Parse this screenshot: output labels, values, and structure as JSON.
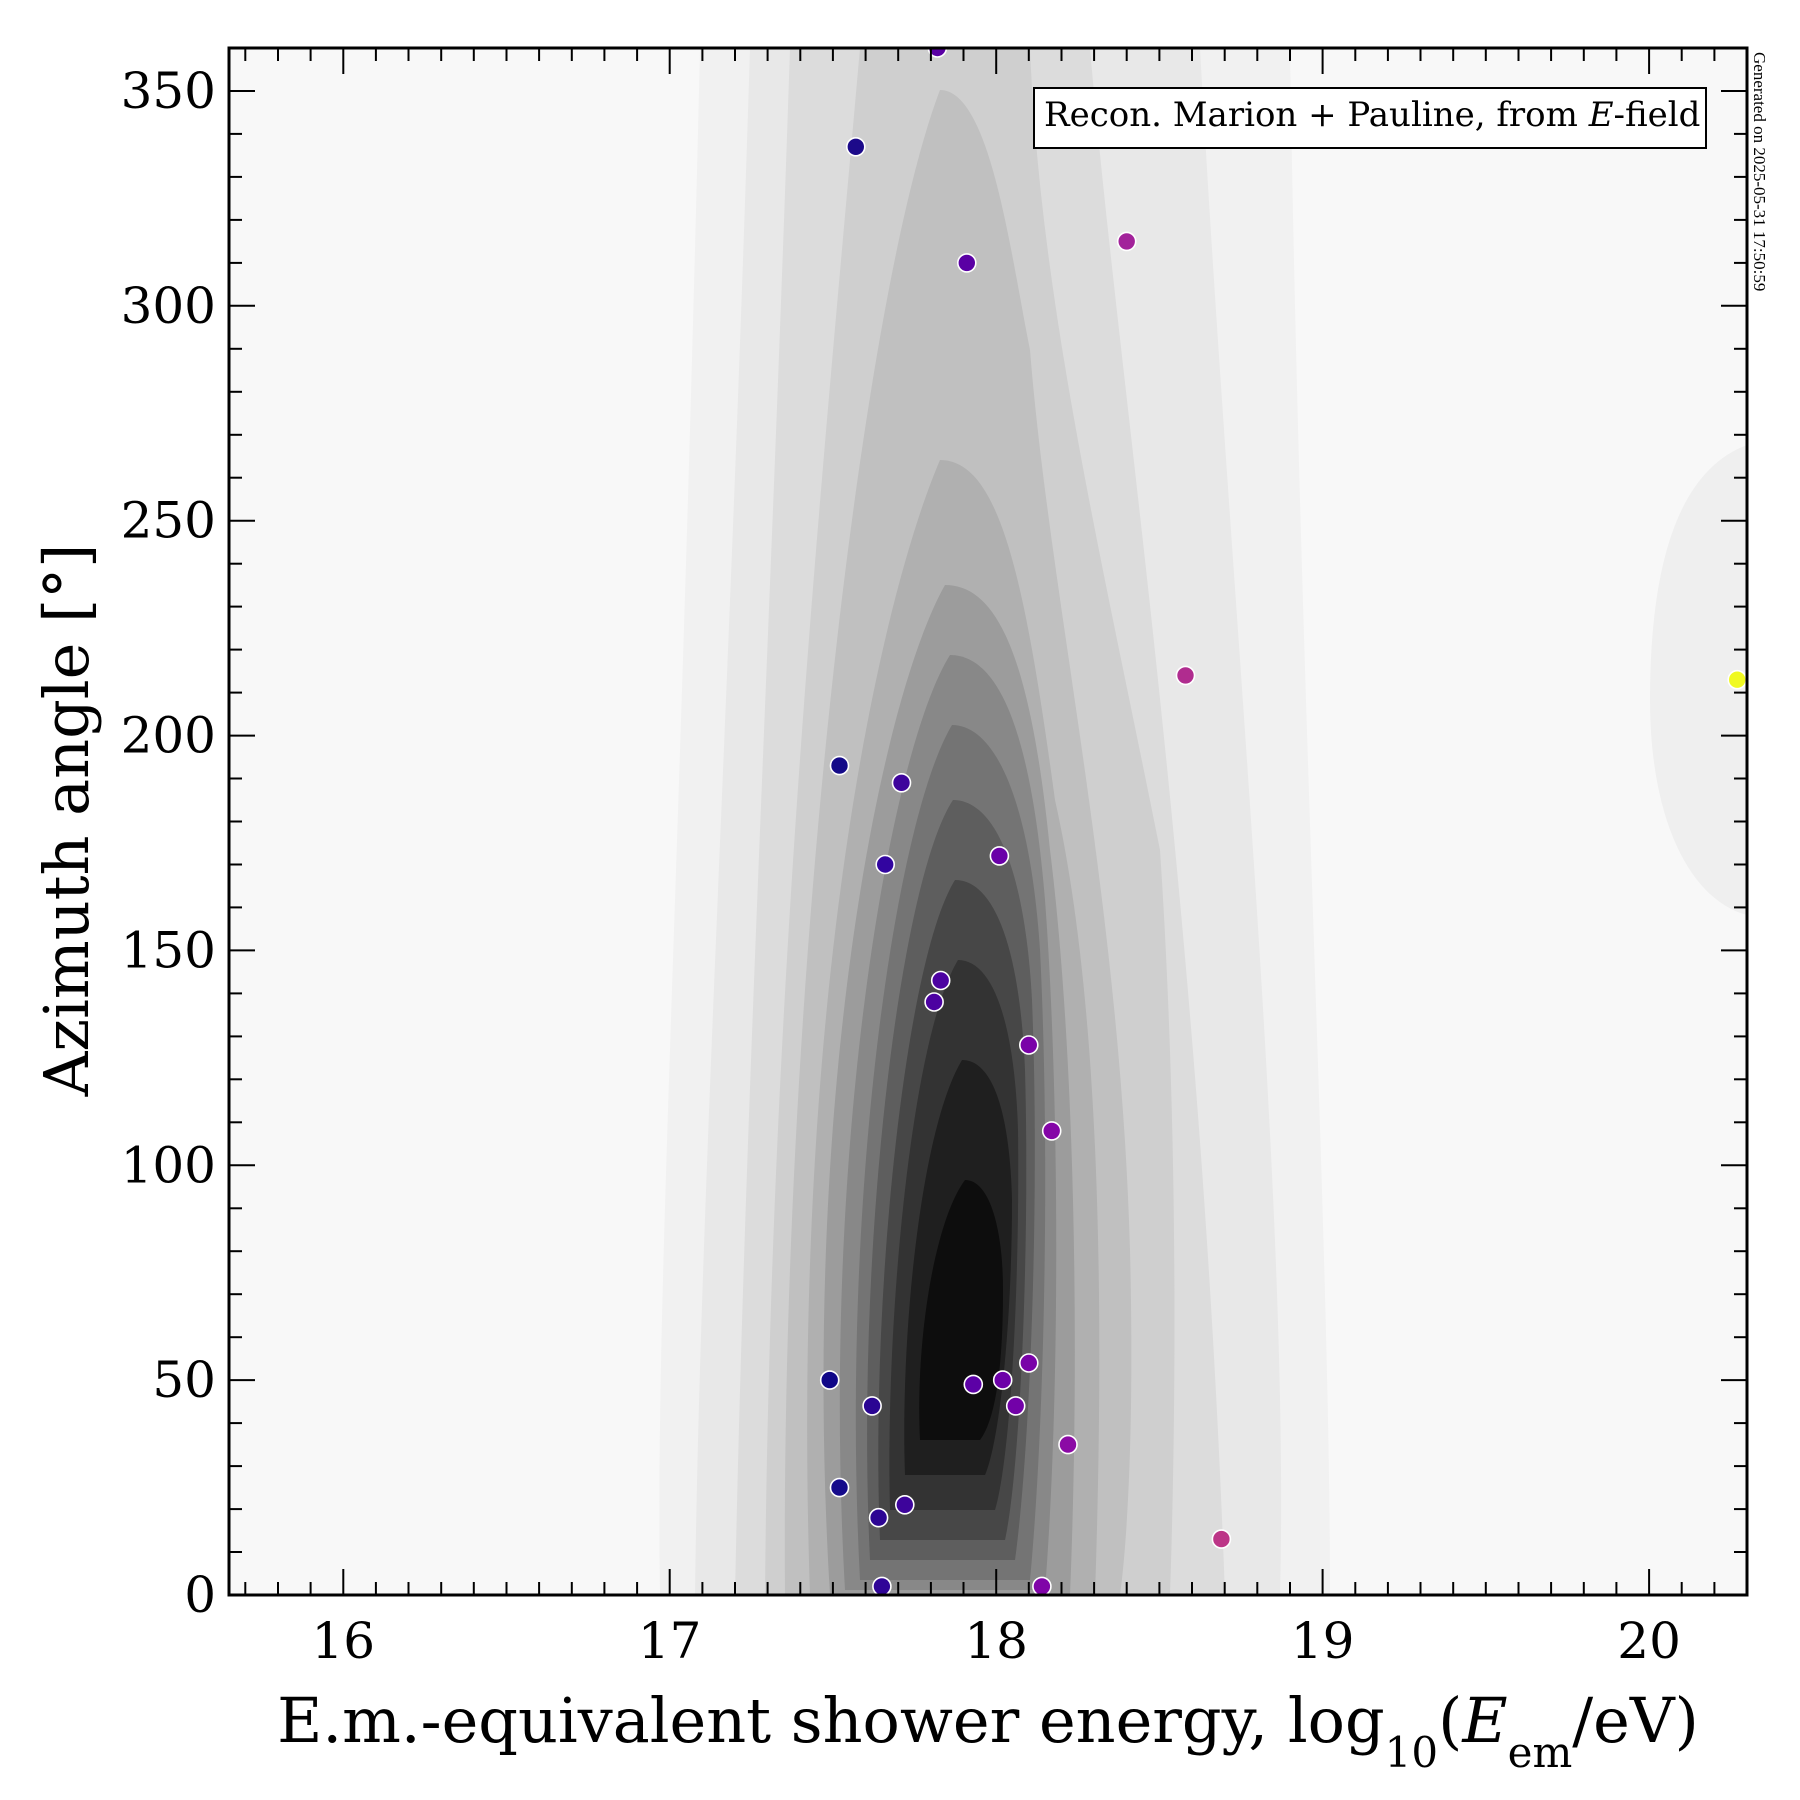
{
  "chart_data": {
    "type": "scatter",
    "title": "",
    "xlabel": "E.m.-equivalent shower energy, log10(Eem/eV)",
    "xlabel_parts": {
      "main": "E.m.-equivalent shower energy, log",
      "sub": "10",
      "open": "(",
      "var": "E",
      "var_sub": "em",
      "close": "/eV)"
    },
    "ylabel": "Azimuth angle [°]",
    "xlim": [
      15.65,
      20.3
    ],
    "ylim": [
      0,
      360
    ],
    "xticks": [
      16,
      17,
      18,
      19,
      20
    ],
    "xtick_labels": [
      "16",
      "17",
      "18",
      "19",
      "20"
    ],
    "yticks": [
      0,
      50,
      100,
      150,
      200,
      250,
      300,
      350
    ],
    "ytick_labels": [
      "0",
      "50",
      "100",
      "150",
      "200",
      "250",
      "300",
      "350"
    ],
    "legend": {
      "text": "Recon. Marion + Pauline, from E-field",
      "prefix": "Recon. Marion + Pauline, from ",
      "var": "E",
      "suffix": "-field",
      "position": "top-right"
    },
    "side_note": "Generated on 2025-05-31 17:50:59",
    "density_background": "grayscale KDE contours peaking near log10(E)=17.9, azimuth=60°",
    "colormap": "plasma, by energy",
    "points": [
      {
        "x": 17.82,
        "y": 360,
        "color": "#5a00a4"
      },
      {
        "x": 17.57,
        "y": 337,
        "color": "#1c0a8a"
      },
      {
        "x": 17.91,
        "y": 310,
        "color": "#5a00a4"
      },
      {
        "x": 18.4,
        "y": 315,
        "color": "#a2229a"
      },
      {
        "x": 18.58,
        "y": 214,
        "color": "#b02c8f"
      },
      {
        "x": 17.52,
        "y": 193,
        "color": "#140a88"
      },
      {
        "x": 17.71,
        "y": 189,
        "color": "#3e049c"
      },
      {
        "x": 17.66,
        "y": 170,
        "color": "#3205a0"
      },
      {
        "x": 18.01,
        "y": 172,
        "color": "#6a00a8"
      },
      {
        "x": 17.83,
        "y": 143,
        "color": "#4c02a1"
      },
      {
        "x": 17.81,
        "y": 138,
        "color": "#4c02a1"
      },
      {
        "x": 18.1,
        "y": 128,
        "color": "#7a02a8"
      },
      {
        "x": 18.17,
        "y": 108,
        "color": "#8405a7"
      },
      {
        "x": 17.49,
        "y": 50,
        "color": "#100788"
      },
      {
        "x": 17.62,
        "y": 44,
        "color": "#2a0593"
      },
      {
        "x": 17.52,
        "y": 25,
        "color": "#150a8b"
      },
      {
        "x": 17.64,
        "y": 18,
        "color": "#2d0594"
      },
      {
        "x": 17.72,
        "y": 21,
        "color": "#3d049b"
      },
      {
        "x": 17.65,
        "y": 2,
        "color": "#300597"
      },
      {
        "x": 17.93,
        "y": 49,
        "color": "#5c01a6"
      },
      {
        "x": 18.02,
        "y": 50,
        "color": "#6c00a8"
      },
      {
        "x": 18.1,
        "y": 54,
        "color": "#7902a8"
      },
      {
        "x": 18.06,
        "y": 44,
        "color": "#7201a8"
      },
      {
        "x": 18.22,
        "y": 35,
        "color": "#8b0aa5"
      },
      {
        "x": 18.14,
        "y": 2,
        "color": "#8004a8"
      },
      {
        "x": 18.69,
        "y": 13,
        "color": "#bc3587"
      },
      {
        "x": 20.27,
        "y": 213,
        "color": "#f0f921"
      }
    ]
  }
}
